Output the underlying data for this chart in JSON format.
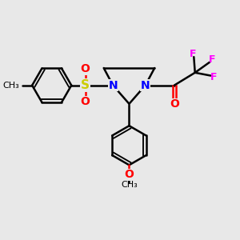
{
  "bg_color": "#e8e8e8",
  "line_color": "#000000",
  "N_color": "#0000ff",
  "O_color": "#ff0000",
  "S_color": "#cccc00",
  "F_color": "#ff00ff",
  "line_width": 1.8,
  "font_size": 9,
  "figsize": [
    3.0,
    3.0
  ],
  "dpi": 100,
  "xlim": [
    0,
    10
  ],
  "ylim": [
    0,
    10
  ]
}
